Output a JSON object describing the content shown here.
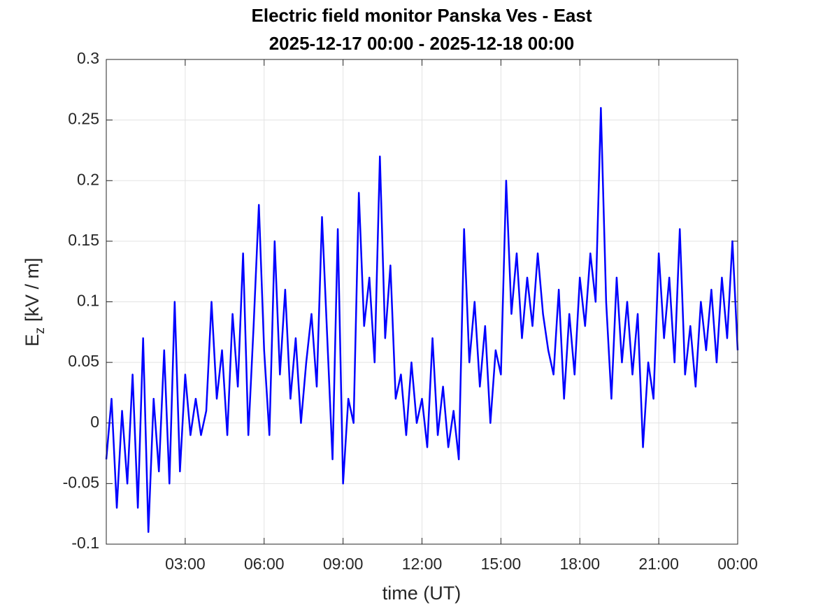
{
  "chart_data": {
    "type": "line",
    "title": [
      "Electric field monitor Panska Ves - East",
      "2025-12-17 00:00 - 2025-12-18 00:00"
    ],
    "xlabel": "time (UT)",
    "ylabel": {
      "main": "E",
      "sub": "z",
      "rest": "[kV / m]"
    },
    "x": [
      0,
      0.2,
      0.4,
      0.6,
      0.8,
      1,
      1.2,
      1.4,
      1.6,
      1.8,
      2,
      2.2,
      2.4,
      2.6,
      2.8,
      3,
      3.2,
      3.4,
      3.6,
      3.8,
      4,
      4.2,
      4.4,
      4.6,
      4.8,
      5,
      5.2,
      5.4,
      5.6,
      5.8,
      6,
      6.2,
      6.4,
      6.6,
      6.8,
      7,
      7.2,
      7.4,
      7.6,
      7.8,
      8,
      8.2,
      8.4,
      8.6,
      8.8,
      9,
      9.2,
      9.4,
      9.6,
      9.8,
      10,
      10.2,
      10.4,
      10.6,
      10.8,
      11,
      11.2,
      11.4,
      11.6,
      11.8,
      12,
      12.2,
      12.4,
      12.6,
      12.8,
      13,
      13.2,
      13.4,
      13.6,
      13.8,
      14,
      14.2,
      14.4,
      14.6,
      14.8,
      15,
      15.2,
      15.4,
      15.6,
      15.8,
      16,
      16.2,
      16.4,
      16.6,
      16.8,
      17,
      17.2,
      17.4,
      17.6,
      17.8,
      18,
      18.2,
      18.4,
      18.6,
      18.8,
      19,
      19.2,
      19.4,
      19.6,
      19.8,
      20,
      20.2,
      20.4,
      20.6,
      20.8,
      21,
      21.2,
      21.4,
      21.6,
      21.8,
      22,
      22.2,
      22.4,
      22.6,
      22.8,
      23,
      23.2,
      23.4,
      23.6,
      23.8,
      24
    ],
    "series": [
      {
        "name": "Ez",
        "color": "#0000ff",
        "values": [
          -0.03,
          0.02,
          -0.07,
          0.01,
          -0.05,
          0.04,
          -0.07,
          0.07,
          -0.09,
          0.02,
          -0.04,
          0.06,
          -0.05,
          0.1,
          -0.04,
          0.04,
          -0.01,
          0.02,
          -0.01,
          0.01,
          0.1,
          0.02,
          0.06,
          -0.01,
          0.09,
          0.03,
          0.14,
          -0.01,
          0.08,
          0.18,
          0.06,
          -0.01,
          0.15,
          0.04,
          0.11,
          0.02,
          0.07,
          0,
          0.05,
          0.09,
          0.03,
          0.17,
          0.07,
          -0.03,
          0.16,
          -0.05,
          0.02,
          0,
          0.19,
          0.08,
          0.12,
          0.05,
          0.22,
          0.07,
          0.13,
          0.02,
          0.04,
          -0.01,
          0.05,
          0,
          0.02,
          -0.02,
          0.07,
          -0.01,
          0.03,
          -0.02,
          0.01,
          -0.03,
          0.16,
          0.05,
          0.1,
          0.03,
          0.08,
          0,
          0.06,
          0.04,
          0.2,
          0.09,
          0.14,
          0.07,
          0.12,
          0.08,
          0.14,
          0.09,
          0.06,
          0.04,
          0.11,
          0.02,
          0.09,
          0.04,
          0.12,
          0.08,
          0.14,
          0.1,
          0.26,
          0.1,
          0.02,
          0.12,
          0.05,
          0.1,
          0.04,
          0.09,
          -0.02,
          0.05,
          0.02,
          0.14,
          0.07,
          0.12,
          0.05,
          0.16,
          0.04,
          0.08,
          0.03,
          0.1,
          0.06,
          0.11,
          0.05,
          0.12,
          0.07,
          0.15,
          0.06
        ]
      }
    ],
    "xlim": [
      0,
      24
    ],
    "xticks": [
      {
        "value": 3,
        "label": "03:00"
      },
      {
        "value": 6,
        "label": "06:00"
      },
      {
        "value": 9,
        "label": "09:00"
      },
      {
        "value": 12,
        "label": "12:00"
      },
      {
        "value": 15,
        "label": "15:00"
      },
      {
        "value": 18,
        "label": "18:00"
      },
      {
        "value": 21,
        "label": "21:00"
      },
      {
        "value": 24,
        "label": "00:00"
      }
    ],
    "ylim": [
      -0.1,
      0.3
    ],
    "yticks": [
      -0.1,
      -0.05,
      0,
      0.05,
      0.1,
      0.15,
      0.2,
      0.25,
      0.3
    ],
    "grid": true
  }
}
